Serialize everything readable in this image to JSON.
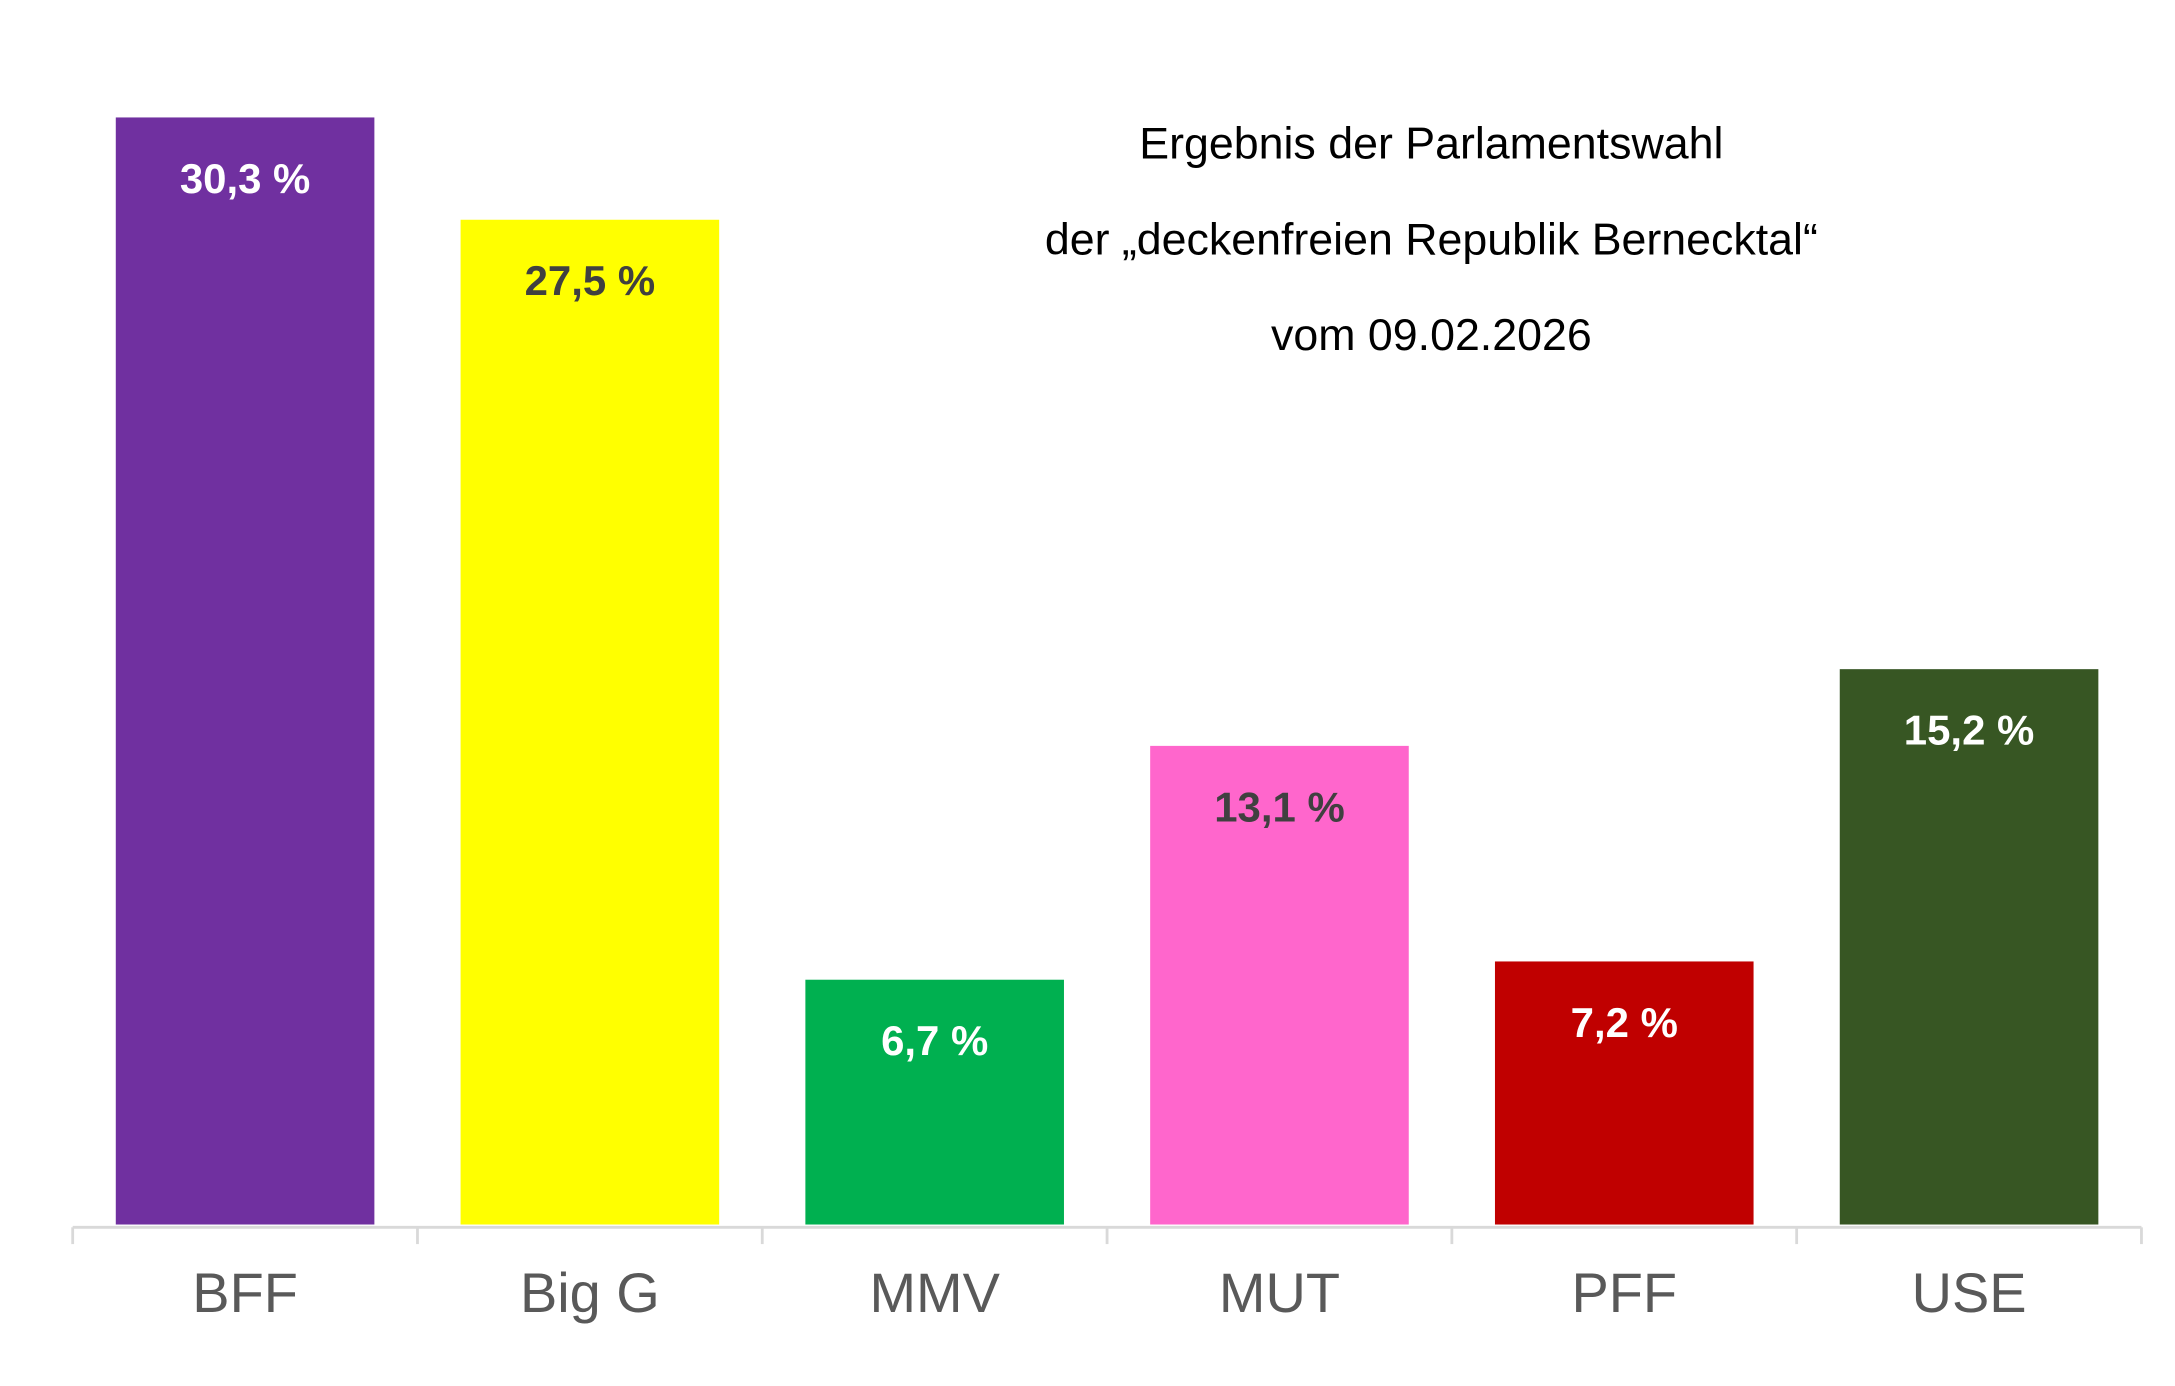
{
  "chart_data": {
    "type": "bar",
    "title": [
      "Ergebnis der Parlamentswahl",
      "der „deckenfreien Republik Bernecktal“",
      "vom 09.02.2026"
    ],
    "categories": [
      "BFF",
      "Big G",
      "MMV",
      "MUT",
      "PFF",
      "USE"
    ],
    "values": [
      30.3,
      27.5,
      6.7,
      13.1,
      7.2,
      15.2
    ],
    "value_labels": [
      "30,3 %",
      "27,5 %",
      "6,7 %",
      "13,1 %",
      "7,2 %",
      "15,2 %"
    ],
    "colors": [
      "#7030a0",
      "#ffff00",
      "#00b050",
      "#ff66cc",
      "#c00000",
      "#375623"
    ]
  }
}
